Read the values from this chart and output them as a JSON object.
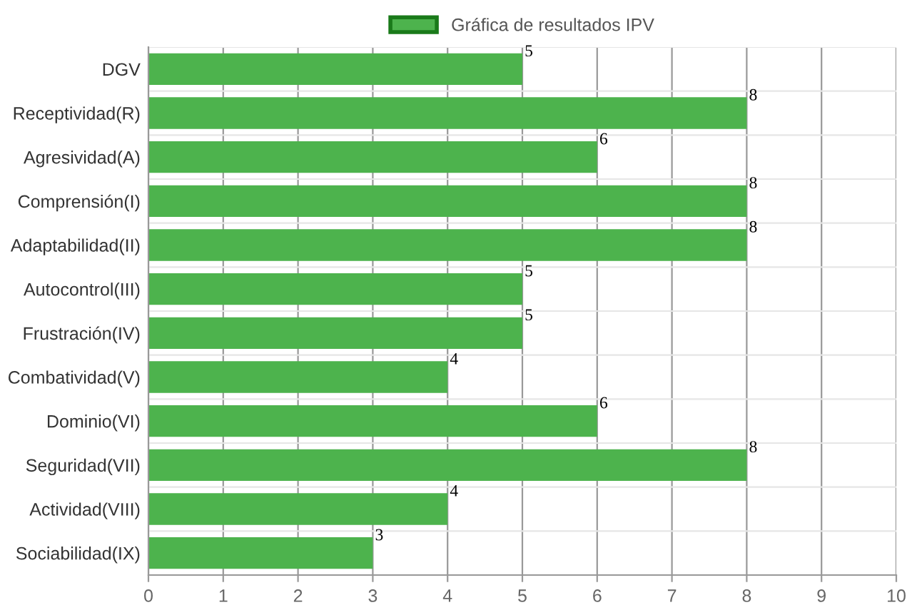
{
  "chart_data": {
    "type": "bar",
    "orientation": "horizontal",
    "categories": [
      "DGV",
      "Receptividad(R)",
      "Agresividad(A)",
      "Comprensión(I)",
      "Adaptabilidad(II)",
      "Autocontrol(III)",
      "Frustración(IV)",
      "Combatividad(V)",
      "Dominio(VI)",
      "Seguridad(VII)",
      "Actividad(VIII)",
      "Sociabilidad(IX)"
    ],
    "series": [
      {
        "name": "Gráfica de resultados IPV",
        "color": "#4db34d",
        "values": [
          5,
          8,
          6,
          8,
          8,
          5,
          5,
          4,
          6,
          8,
          4,
          3
        ]
      }
    ],
    "xlim": [
      0,
      10
    ],
    "xticks": [
      0,
      1,
      2,
      3,
      4,
      5,
      6,
      7,
      8,
      9,
      10
    ],
    "grid": true,
    "legend": "top",
    "data_labels": true
  }
}
